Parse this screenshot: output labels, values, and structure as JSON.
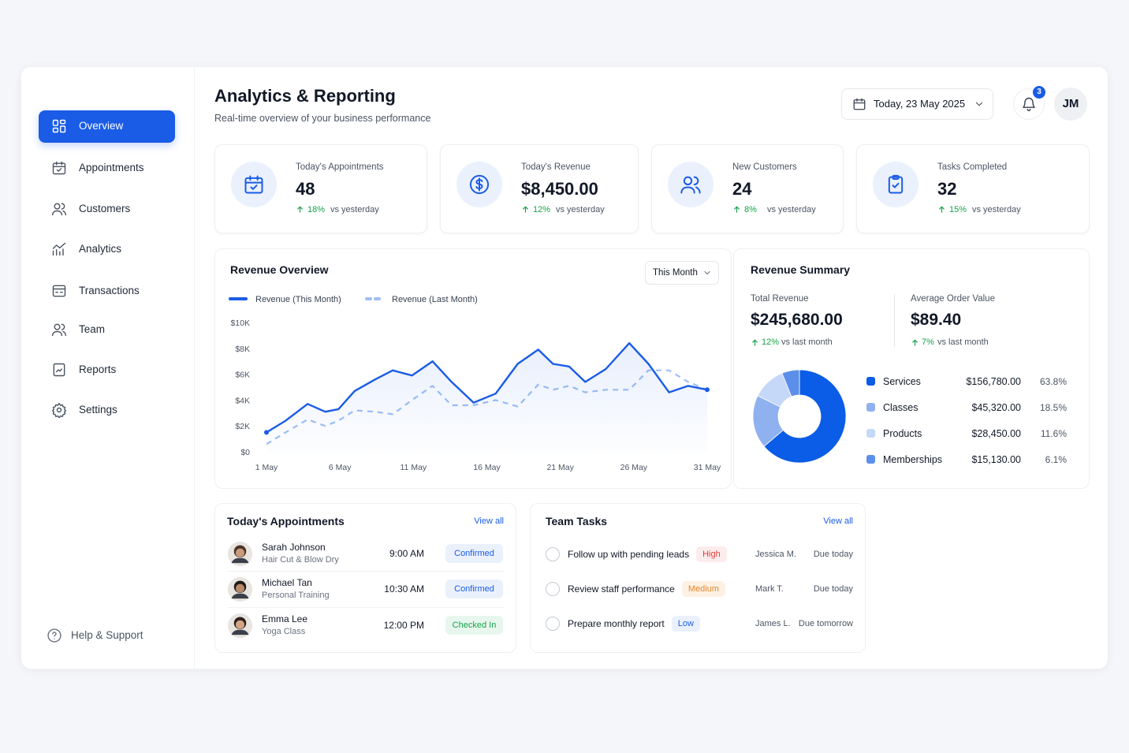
{
  "sidebar": {
    "nav": [
      "Overview",
      "Appointments",
      "Customers",
      "Analytics",
      "Transactions",
      "Team",
      "Reports",
      "Settings"
    ],
    "active": 0,
    "help": "Help & Support"
  },
  "header": {
    "title": "Analytics & Reporting",
    "subtitle": "Real-time overview of your business performance",
    "date": "Today, 23 May 2025",
    "notifications": "3",
    "avatar": "JM"
  },
  "kpis": [
    {
      "label": "Today's Appointments",
      "value": "48",
      "change": "18%",
      "compare": "vs yesterday"
    },
    {
      "label": "Today's Revenue",
      "value": "$8,450.00",
      "change": "12%",
      "compare": "vs yesterday"
    },
    {
      "label": "New Customers",
      "value": "24",
      "change": "8%",
      "compare": "vs yesterday"
    },
    {
      "label": "Tasks Completed",
      "value": "32",
      "change": "15%",
      "compare": "vs yesterday"
    }
  ],
  "chart_data": [
    {
      "type": "line",
      "title": "Revenue Overview",
      "period": "This Month",
      "x": [
        1,
        2.3,
        3.8,
        5,
        5.9,
        7,
        8.4,
        9.6,
        10.9,
        12.3,
        13.6,
        15.1,
        16.6,
        18.1,
        19.5,
        20.5,
        21.6,
        22.7,
        24.1,
        25.7,
        27,
        28.4,
        29.7,
        31
      ],
      "xlim": [
        1,
        31
      ],
      "xticks": [
        {
          "value": 1,
          "label": "1 May"
        },
        {
          "value": 6,
          "label": "6 May"
        },
        {
          "value": 11,
          "label": "11 May"
        },
        {
          "value": 16,
          "label": "16 May"
        },
        {
          "value": 21,
          "label": "21 May"
        },
        {
          "value": 26,
          "label": "26 May"
        },
        {
          "value": 31,
          "label": "31 May"
        }
      ],
      "ylim": [
        0,
        10000
      ],
      "yticks": [
        {
          "value": 0,
          "label": "$0"
        },
        {
          "value": 2000,
          "label": "$2K"
        },
        {
          "value": 4000,
          "label": "$4K"
        },
        {
          "value": 6000,
          "label": "$6K"
        },
        {
          "value": 8000,
          "label": "$8K"
        },
        {
          "value": 10000,
          "label": "$10K"
        }
      ],
      "series": [
        {
          "name": "Revenue (This Month)",
          "color": "#1a5ce6",
          "dashed": false,
          "values": [
            1500,
            2400,
            3700,
            3100,
            3300,
            4700,
            5600,
            6300,
            5900,
            7000,
            5400,
            3800,
            4500,
            6800,
            7900,
            6800,
            6600,
            5400,
            6400,
            8400,
            6800,
            4600,
            5100,
            4800
          ]
        },
        {
          "name": "Revenue (Last Month)",
          "color": "#9fbff4",
          "dashed": true,
          "values": [
            600,
            1500,
            2500,
            2000,
            2400,
            3200,
            3100,
            2900,
            4000,
            5100,
            3600,
            3600,
            4000,
            3500,
            5200,
            4800,
            5100,
            4600,
            4800,
            4800,
            6300,
            6300,
            5400,
            4800
          ]
        }
      ]
    },
    {
      "type": "pie",
      "title": "Revenue Summary",
      "stats": [
        {
          "label": "Total Revenue",
          "value": "$245,680.00",
          "change": "12%",
          "compare": "vs last month"
        },
        {
          "label": "Average Order Value",
          "value": "$89.40",
          "change": "7%",
          "compare": "vs last month"
        }
      ],
      "categories": [
        "Services",
        "Classes",
        "Products",
        "Memberships"
      ],
      "amounts": [
        "$156,780.00",
        "$45,320.00",
        "$28,450.00",
        "$15,130.00"
      ],
      "values": [
        63.8,
        18.5,
        11.6,
        6.1
      ],
      "value_labels": [
        "63.8%",
        "18.5%",
        "11.6%",
        "6.1%"
      ],
      "colors": [
        "#0b5ce6",
        "#8fb1ef",
        "#c6d8f8",
        "#5b8fe9"
      ]
    }
  ],
  "appointments": {
    "title": "Today's Appointments",
    "link": "View all",
    "rows": [
      {
        "name": "Sarah Johnson",
        "service": "Hair Cut & Blow Dry",
        "time": "9:00 AM",
        "status": "Confirmed",
        "status_color": "#1a5ce6",
        "status_bg": "#eaf1fd"
      },
      {
        "name": "Michael Tan",
        "service": "Personal Training",
        "time": "10:30 AM",
        "status": "Confirmed",
        "status_color": "#1a5ce6",
        "status_bg": "#eaf1fd"
      },
      {
        "name": "Emma Lee",
        "service": "Yoga Class",
        "time": "12:00 PM",
        "status": "Checked In",
        "status_color": "#16a34a",
        "status_bg": "#e8f7ee"
      }
    ]
  },
  "tasks": {
    "title": "Team Tasks",
    "link": "View all",
    "rows": [
      {
        "task": "Follow up with pending leads",
        "priority": "High",
        "priority_color": "#e0403a",
        "priority_bg": "#fdecec",
        "assignee": "Jessica M.",
        "due": "Due today"
      },
      {
        "task": "Review staff performance",
        "priority": "Medium",
        "priority_color": "#e8862a",
        "priority_bg": "#fdf1e4",
        "assignee": "Mark T.",
        "due": "Due today"
      },
      {
        "task": "Prepare monthly report",
        "priority": "Low",
        "priority_color": "#1a5ce6",
        "priority_bg": "#eaf1fd",
        "assignee": "James L.",
        "due": "Due tomorrow"
      }
    ]
  }
}
